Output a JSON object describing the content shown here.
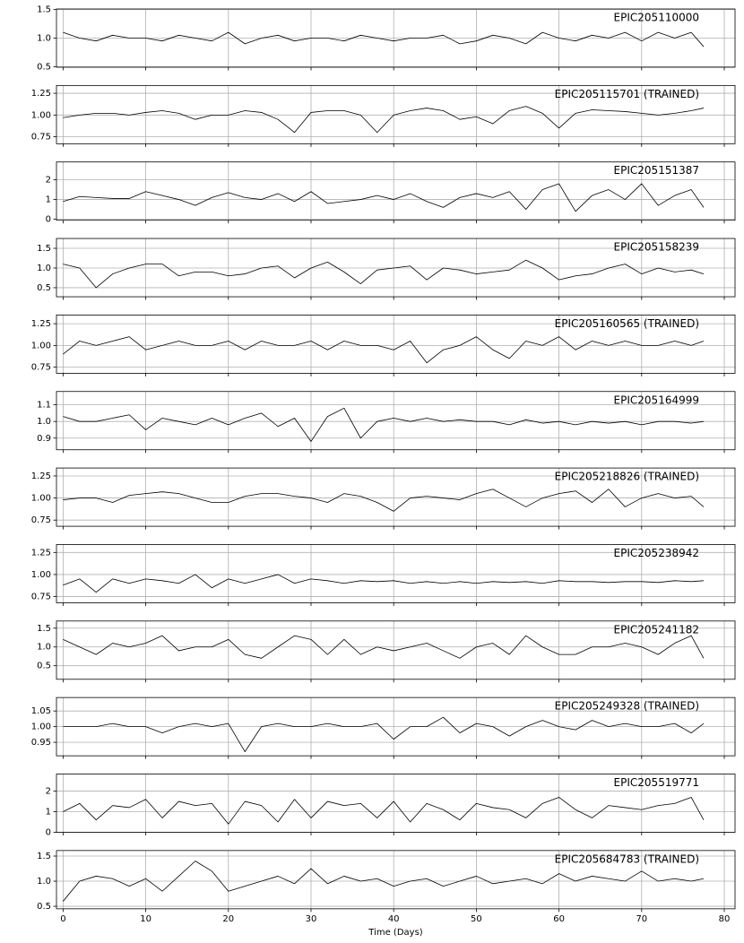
{
  "chart_data": [
    {
      "type": "line",
      "title": "EPIC205110000",
      "color": "#000000",
      "grid": true,
      "x": [
        0,
        2,
        4,
        6,
        8,
        10,
        12,
        14,
        16,
        18,
        20,
        22,
        24,
        26,
        28,
        30,
        32,
        34,
        36,
        38,
        40,
        42,
        44,
        46,
        48,
        50,
        52,
        54,
        56,
        58,
        60,
        62,
        64,
        66,
        68,
        70,
        72,
        74,
        76,
        77.5
      ],
      "values": [
        1.1,
        1.0,
        0.95,
        1.05,
        1.0,
        1.0,
        0.95,
        1.05,
        1.0,
        0.95,
        1.1,
        0.9,
        1.0,
        1.05,
        0.95,
        1.0,
        1.0,
        0.95,
        1.05,
        1.0,
        0.95,
        1.0,
        1.0,
        1.05,
        0.9,
        0.95,
        1.05,
        1.0,
        0.9,
        1.1,
        1.0,
        0.95,
        1.05,
        1.0,
        1.1,
        0.95,
        1.1,
        1.0,
        1.1,
        0.85
      ],
      "xlim": [
        -0.8,
        81.3
      ],
      "xticks": [
        0,
        10,
        20,
        30,
        40,
        50,
        60,
        70,
        80
      ],
      "ylim": [
        0.49,
        1.51
      ],
      "yticks": [
        0.5,
        {
          "value": 1,
          "label": "1.0"
        },
        1.5
      ]
    },
    {
      "type": "line",
      "title": "EPIC205115701 (TRAINED)",
      "color": "#000000",
      "grid": true,
      "x": [
        0,
        2,
        4,
        6,
        8,
        10,
        12,
        14,
        16,
        18,
        20,
        22,
        24,
        26,
        28,
        30,
        32,
        34,
        36,
        38,
        40,
        42,
        44,
        46,
        48,
        50,
        52,
        54,
        56,
        58,
        60,
        62,
        64,
        66,
        68,
        70,
        72,
        74,
        76,
        77.5
      ],
      "values": [
        0.97,
        1.0,
        1.02,
        1.02,
        1.0,
        1.03,
        1.05,
        1.02,
        0.95,
        1.0,
        1.0,
        1.05,
        1.03,
        0.95,
        0.8,
        1.03,
        1.05,
        1.05,
        1.0,
        0.8,
        1.0,
        1.05,
        1.08,
        1.05,
        0.95,
        0.98,
        0.9,
        1.05,
        1.1,
        1.02,
        0.85,
        1.02,
        1.06,
        1.05,
        1.04,
        1.02,
        1.0,
        1.02,
        1.05,
        1.08
      ],
      "xlim": [
        -0.8,
        81.3
      ],
      "xticks": [
        0,
        10,
        20,
        30,
        40,
        50,
        60,
        70,
        80
      ],
      "ylim": [
        0.67,
        1.34
      ],
      "yticks": [
        0.75,
        {
          "value": 1,
          "label": "1.00"
        },
        1.25
      ]
    },
    {
      "type": "line",
      "title": "EPIC205151387",
      "color": "#000000",
      "grid": true,
      "x": [
        0,
        2,
        4,
        6,
        8,
        10,
        12,
        14,
        16,
        18,
        20,
        22,
        24,
        26,
        28,
        30,
        32,
        34,
        36,
        38,
        40,
        42,
        44,
        46,
        48,
        50,
        52,
        54,
        56,
        58,
        60,
        62,
        64,
        66,
        68,
        70,
        72,
        74,
        76,
        77.5
      ],
      "values": [
        0.9,
        1.15,
        1.1,
        1.05,
        1.05,
        1.4,
        1.2,
        1.0,
        0.7,
        1.1,
        1.35,
        1.1,
        1.0,
        1.3,
        0.9,
        1.4,
        0.8,
        0.9,
        1.0,
        1.2,
        1.0,
        1.3,
        0.9,
        0.6,
        1.1,
        1.3,
        1.1,
        1.4,
        0.5,
        1.5,
        1.8,
        0.4,
        1.2,
        1.5,
        1.0,
        1.8,
        0.7,
        1.2,
        1.5,
        0.6
      ],
      "xlim": [
        -0.8,
        81.3
      ],
      "xticks": [
        0,
        10,
        20,
        30,
        40,
        50,
        60,
        70,
        80
      ],
      "ylim": [
        -0.05,
        2.9
      ],
      "yticks": [
        0,
        1,
        2
      ]
    },
    {
      "type": "line",
      "title": "EPIC205158239",
      "color": "#000000",
      "grid": true,
      "x": [
        0,
        2,
        4,
        6,
        8,
        10,
        12,
        14,
        16,
        18,
        20,
        22,
        24,
        26,
        28,
        30,
        32,
        34,
        36,
        38,
        40,
        42,
        44,
        46,
        48,
        50,
        52,
        54,
        56,
        58,
        60,
        62,
        64,
        66,
        68,
        70,
        72,
        74,
        76,
        77.5
      ],
      "values": [
        1.1,
        1.0,
        0.5,
        0.85,
        1.0,
        1.1,
        1.1,
        0.8,
        0.9,
        0.9,
        0.8,
        0.85,
        1.0,
        1.05,
        0.75,
        1.0,
        1.15,
        0.9,
        0.6,
        0.95,
        1.0,
        1.05,
        0.7,
        1.0,
        0.95,
        0.85,
        0.9,
        0.95,
        1.2,
        1.0,
        0.7,
        0.8,
        0.85,
        1.0,
        1.1,
        0.85,
        1.0,
        0.9,
        0.95,
        0.85
      ],
      "xlim": [
        -0.8,
        81.3
      ],
      "xticks": [
        0,
        10,
        20,
        30,
        40,
        50,
        60,
        70,
        80
      ],
      "ylim": [
        0.27,
        1.75
      ],
      "yticks": [
        0.5,
        {
          "value": 1,
          "label": "1.0"
        },
        1.5
      ]
    },
    {
      "type": "line",
      "title": "EPIC205160565 (TRAINED)",
      "color": "#000000",
      "grid": true,
      "x": [
        0,
        2,
        4,
        6,
        8,
        10,
        12,
        14,
        16,
        18,
        20,
        22,
        24,
        26,
        28,
        30,
        32,
        34,
        36,
        38,
        40,
        42,
        44,
        46,
        48,
        50,
        52,
        54,
        56,
        58,
        60,
        62,
        64,
        66,
        68,
        70,
        72,
        74,
        76,
        77.5
      ],
      "values": [
        0.9,
        1.05,
        1.0,
        1.05,
        1.1,
        0.95,
        1.0,
        1.05,
        1.0,
        1.0,
        1.05,
        0.95,
        1.05,
        1.0,
        1.0,
        1.05,
        0.95,
        1.05,
        1.0,
        1.0,
        0.95,
        1.05,
        0.8,
        0.95,
        1.0,
        1.1,
        0.95,
        0.85,
        1.05,
        1.0,
        1.1,
        0.95,
        1.05,
        1.0,
        1.05,
        1.0,
        1.0,
        1.05,
        1.0,
        1.05
      ],
      "xlim": [
        -0.8,
        81.3
      ],
      "xticks": [
        0,
        10,
        20,
        30,
        40,
        50,
        60,
        70,
        80
      ],
      "ylim": [
        0.68,
        1.35
      ],
      "yticks": [
        0.75,
        {
          "value": 1,
          "label": "1.00"
        },
        1.25
      ]
    },
    {
      "type": "line",
      "title": "EPIC205164999",
      "color": "#000000",
      "grid": true,
      "x": [
        0,
        2,
        4,
        6,
        8,
        10,
        12,
        14,
        16,
        18,
        20,
        22,
        24,
        26,
        28,
        30,
        32,
        34,
        36,
        38,
        40,
        42,
        44,
        46,
        48,
        50,
        52,
        54,
        56,
        58,
        60,
        62,
        64,
        66,
        68,
        70,
        72,
        74,
        76,
        77.5
      ],
      "values": [
        1.03,
        1.0,
        1.0,
        1.02,
        1.04,
        0.95,
        1.02,
        1.0,
        0.98,
        1.02,
        0.98,
        1.02,
        1.05,
        0.97,
        1.02,
        0.88,
        1.03,
        1.08,
        0.9,
        1.0,
        1.02,
        1.0,
        1.02,
        1.0,
        1.01,
        1.0,
        1.0,
        0.98,
        1.01,
        0.99,
        1.0,
        0.98,
        1.0,
        0.99,
        1.0,
        0.98,
        1.0,
        1.0,
        0.99,
        1.0
      ],
      "xlim": [
        -0.8,
        81.3
      ],
      "xticks": [
        0,
        10,
        20,
        30,
        40,
        50,
        60,
        70,
        80
      ],
      "ylim": [
        0.83,
        1.18
      ],
      "yticks": [
        0.9,
        {
          "value": 1,
          "label": "1.0"
        },
        1.1
      ]
    },
    {
      "type": "line",
      "title": "EPIC205218826 (TRAINED)",
      "color": "#000000",
      "grid": true,
      "x": [
        0,
        2,
        4,
        6,
        8,
        10,
        12,
        14,
        16,
        18,
        20,
        22,
        24,
        26,
        28,
        30,
        32,
        34,
        36,
        38,
        40,
        42,
        44,
        46,
        48,
        50,
        52,
        54,
        56,
        58,
        60,
        62,
        64,
        66,
        68,
        70,
        72,
        74,
        76,
        77.5
      ],
      "values": [
        0.98,
        1.0,
        1.0,
        0.95,
        1.03,
        1.05,
        1.07,
        1.05,
        1.0,
        0.95,
        0.95,
        1.02,
        1.05,
        1.05,
        1.02,
        1.0,
        0.95,
        1.05,
        1.02,
        0.95,
        0.85,
        1.0,
        1.02,
        1.0,
        0.98,
        1.05,
        1.1,
        1.0,
        0.9,
        1.0,
        1.05,
        1.08,
        0.95,
        1.1,
        0.9,
        1.0,
        1.05,
        1.0,
        1.02,
        0.9
      ],
      "xlim": [
        -0.8,
        81.3
      ],
      "xticks": [
        0,
        10,
        20,
        30,
        40,
        50,
        60,
        70,
        80
      ],
      "ylim": [
        0.68,
        1.34
      ],
      "yticks": [
        0.75,
        {
          "value": 1,
          "label": "1.00"
        },
        1.25
      ]
    },
    {
      "type": "line",
      "title": "EPIC205238942",
      "color": "#000000",
      "grid": true,
      "x": [
        0,
        2,
        4,
        6,
        8,
        10,
        12,
        14,
        16,
        18,
        20,
        22,
        24,
        26,
        28,
        30,
        32,
        34,
        36,
        38,
        40,
        42,
        44,
        46,
        48,
        50,
        52,
        54,
        56,
        58,
        60,
        62,
        64,
        66,
        68,
        70,
        72,
        74,
        76,
        77.5
      ],
      "values": [
        0.88,
        0.95,
        0.8,
        0.95,
        0.9,
        0.95,
        0.93,
        0.9,
        1.0,
        0.85,
        0.95,
        0.9,
        0.95,
        1.0,
        0.9,
        0.95,
        0.93,
        0.9,
        0.93,
        0.92,
        0.93,
        0.9,
        0.92,
        0.9,
        0.92,
        0.9,
        0.92,
        0.91,
        0.92,
        0.9,
        0.93,
        0.92,
        0.92,
        0.91,
        0.92,
        0.92,
        0.91,
        0.93,
        0.92,
        0.93
      ],
      "xlim": [
        -0.8,
        81.3
      ],
      "xticks": [
        0,
        10,
        20,
        30,
        40,
        50,
        60,
        70,
        80
      ],
      "ylim": [
        0.68,
        1.34
      ],
      "yticks": [
        0.75,
        {
          "value": 1,
          "label": "1.00"
        },
        1.25
      ]
    },
    {
      "type": "line",
      "title": "EPIC205241182",
      "color": "#000000",
      "grid": true,
      "x": [
        0,
        2,
        4,
        6,
        8,
        10,
        12,
        14,
        16,
        18,
        20,
        22,
        24,
        26,
        28,
        30,
        32,
        34,
        36,
        38,
        40,
        42,
        44,
        46,
        48,
        50,
        52,
        54,
        56,
        58,
        60,
        62,
        64,
        66,
        68,
        70,
        72,
        74,
        76,
        77.5
      ],
      "values": [
        1.2,
        1.0,
        0.8,
        1.1,
        1.0,
        1.1,
        1.3,
        0.9,
        1.0,
        1.0,
        1.2,
        0.8,
        0.7,
        1.0,
        1.3,
        1.2,
        0.8,
        1.2,
        0.8,
        1.0,
        0.9,
        1.0,
        1.1,
        0.9,
        0.7,
        1.0,
        1.1,
        0.8,
        1.3,
        1.0,
        0.8,
        0.8,
        1.0,
        1.0,
        1.1,
        1.0,
        0.8,
        1.1,
        1.3,
        0.7
      ],
      "xlim": [
        -0.8,
        81.3
      ],
      "xticks": [
        0,
        10,
        20,
        30,
        40,
        50,
        60,
        70,
        80
      ],
      "ylim": [
        0.14,
        1.69
      ],
      "yticks": [
        0.5,
        {
          "value": 1,
          "label": "1.0"
        },
        1.5
      ]
    },
    {
      "type": "line",
      "title": "EPIC205249328 (TRAINED)",
      "color": "#000000",
      "grid": true,
      "x": [
        0,
        2,
        4,
        6,
        8,
        10,
        12,
        14,
        16,
        18,
        20,
        22,
        24,
        26,
        28,
        30,
        32,
        34,
        36,
        38,
        40,
        42,
        44,
        46,
        48,
        50,
        52,
        54,
        56,
        58,
        60,
        62,
        64,
        66,
        68,
        70,
        72,
        74,
        76,
        77.5
      ],
      "values": [
        1.0,
        1.0,
        1.0,
        1.01,
        1.0,
        1.0,
        0.98,
        1.0,
        1.01,
        1.0,
        1.01,
        0.92,
        1.0,
        1.01,
        1.0,
        1.0,
        1.01,
        1.0,
        1.0,
        1.01,
        0.96,
        1.0,
        1.0,
        1.03,
        0.98,
        1.01,
        1.0,
        0.97,
        1.0,
        1.02,
        1.0,
        0.99,
        1.02,
        1.0,
        1.01,
        1.0,
        1.0,
        1.01,
        0.98,
        1.01
      ],
      "xlim": [
        -0.8,
        81.3
      ],
      "xticks": [
        0,
        10,
        20,
        30,
        40,
        50,
        60,
        70,
        80
      ],
      "ylim": [
        0.907,
        1.093
      ],
      "yticks": [
        0.95,
        {
          "value": 1,
          "label": "1.00"
        },
        1.05
      ]
    },
    {
      "type": "line",
      "title": "EPIC205519771",
      "color": "#000000",
      "grid": true,
      "x": [
        0,
        2,
        4,
        6,
        8,
        10,
        12,
        14,
        16,
        18,
        20,
        22,
        24,
        26,
        28,
        30,
        32,
        34,
        36,
        38,
        40,
        42,
        44,
        46,
        48,
        50,
        52,
        54,
        56,
        58,
        60,
        62,
        64,
        66,
        68,
        70,
        72,
        74,
        76,
        77.5
      ],
      "values": [
        1.0,
        1.4,
        0.6,
        1.3,
        1.2,
        1.6,
        0.7,
        1.5,
        1.3,
        1.4,
        0.4,
        1.5,
        1.3,
        0.5,
        1.6,
        0.7,
        1.5,
        1.3,
        1.4,
        0.7,
        1.5,
        0.5,
        1.4,
        1.1,
        0.6,
        1.4,
        1.2,
        1.1,
        0.7,
        1.4,
        1.7,
        1.1,
        0.7,
        1.3,
        1.2,
        1.1,
        1.3,
        1.4,
        1.7,
        0.6
      ],
      "xlim": [
        -0.8,
        81.3
      ],
      "xticks": [
        0,
        10,
        20,
        30,
        40,
        50,
        60,
        70,
        80
      ],
      "ylim": [
        0,
        2.83
      ],
      "yticks": [
        0,
        1,
        2
      ]
    },
    {
      "type": "line",
      "title": "EPIC205684783 (TRAINED)",
      "xlabel": "Time (Days)",
      "color": "#000000",
      "grid": true,
      "x": [
        0,
        2,
        4,
        6,
        8,
        10,
        12,
        14,
        16,
        18,
        20,
        22,
        24,
        26,
        28,
        30,
        32,
        34,
        36,
        38,
        40,
        42,
        44,
        46,
        48,
        50,
        52,
        54,
        56,
        58,
        60,
        62,
        64,
        66,
        68,
        70,
        72,
        74,
        76,
        77.5
      ],
      "values": [
        0.6,
        1.0,
        1.1,
        1.05,
        0.9,
        1.05,
        0.8,
        1.1,
        1.4,
        1.2,
        0.8,
        0.9,
        1.0,
        1.1,
        0.95,
        1.25,
        0.95,
        1.1,
        1.0,
        1.05,
        0.9,
        1.0,
        1.05,
        0.9,
        1.0,
        1.1,
        0.95,
        1.0,
        1.05,
        0.95,
        1.15,
        1.0,
        1.1,
        1.05,
        1.0,
        1.2,
        1.0,
        1.05,
        1.0,
        1.05
      ],
      "xlim": [
        -0.8,
        81.3
      ],
      "xticks": [
        0,
        10,
        20,
        30,
        40,
        50,
        60,
        70,
        80
      ],
      "ylim": [
        0.45,
        1.61
      ],
      "yticks": [
        0.5,
        {
          "value": 1,
          "label": "1.0"
        },
        1.5
      ]
    }
  ]
}
